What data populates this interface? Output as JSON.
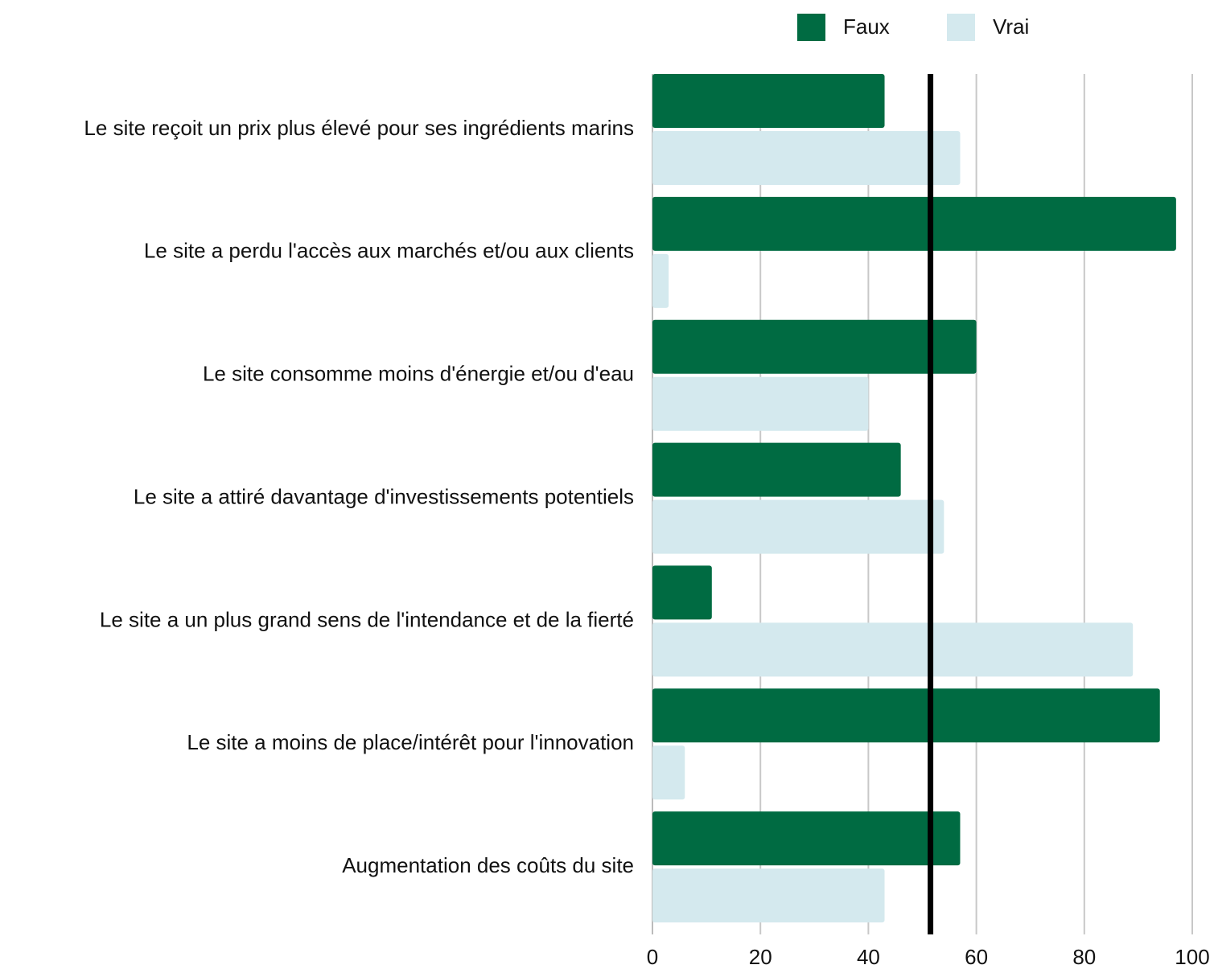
{
  "chart_data": {
    "type": "hbar",
    "categories": [
      "Le site reçoit un prix plus élevé pour ses ingrédients marins",
      "Le site a perdu l'accès aux marchés et/ou aux clients",
      "Le site consomme moins d'énergie et/ou d'eau",
      "Le site a attiré davantage d'investissements potentiels",
      "Le site a un plus grand sens de l'intendance et de la fierté",
      "Le site a moins de place/intérêt pour l'innovation",
      "Augmentation des coûts du site"
    ],
    "series": [
      {
        "name": "Faux",
        "color": "#006b42",
        "values": [
          43,
          97,
          60,
          46,
          11,
          94,
          57
        ]
      },
      {
        "name": "Vrai",
        "color": "#d4e9ee",
        "values": [
          57,
          3,
          40,
          54,
          89,
          6,
          43
        ]
      }
    ],
    "reference_x": 51.5,
    "xlim": [
      0,
      100
    ],
    "xticks": [
      0,
      20,
      40,
      60,
      80,
      100
    ],
    "grid": true,
    "legend": "top"
  }
}
